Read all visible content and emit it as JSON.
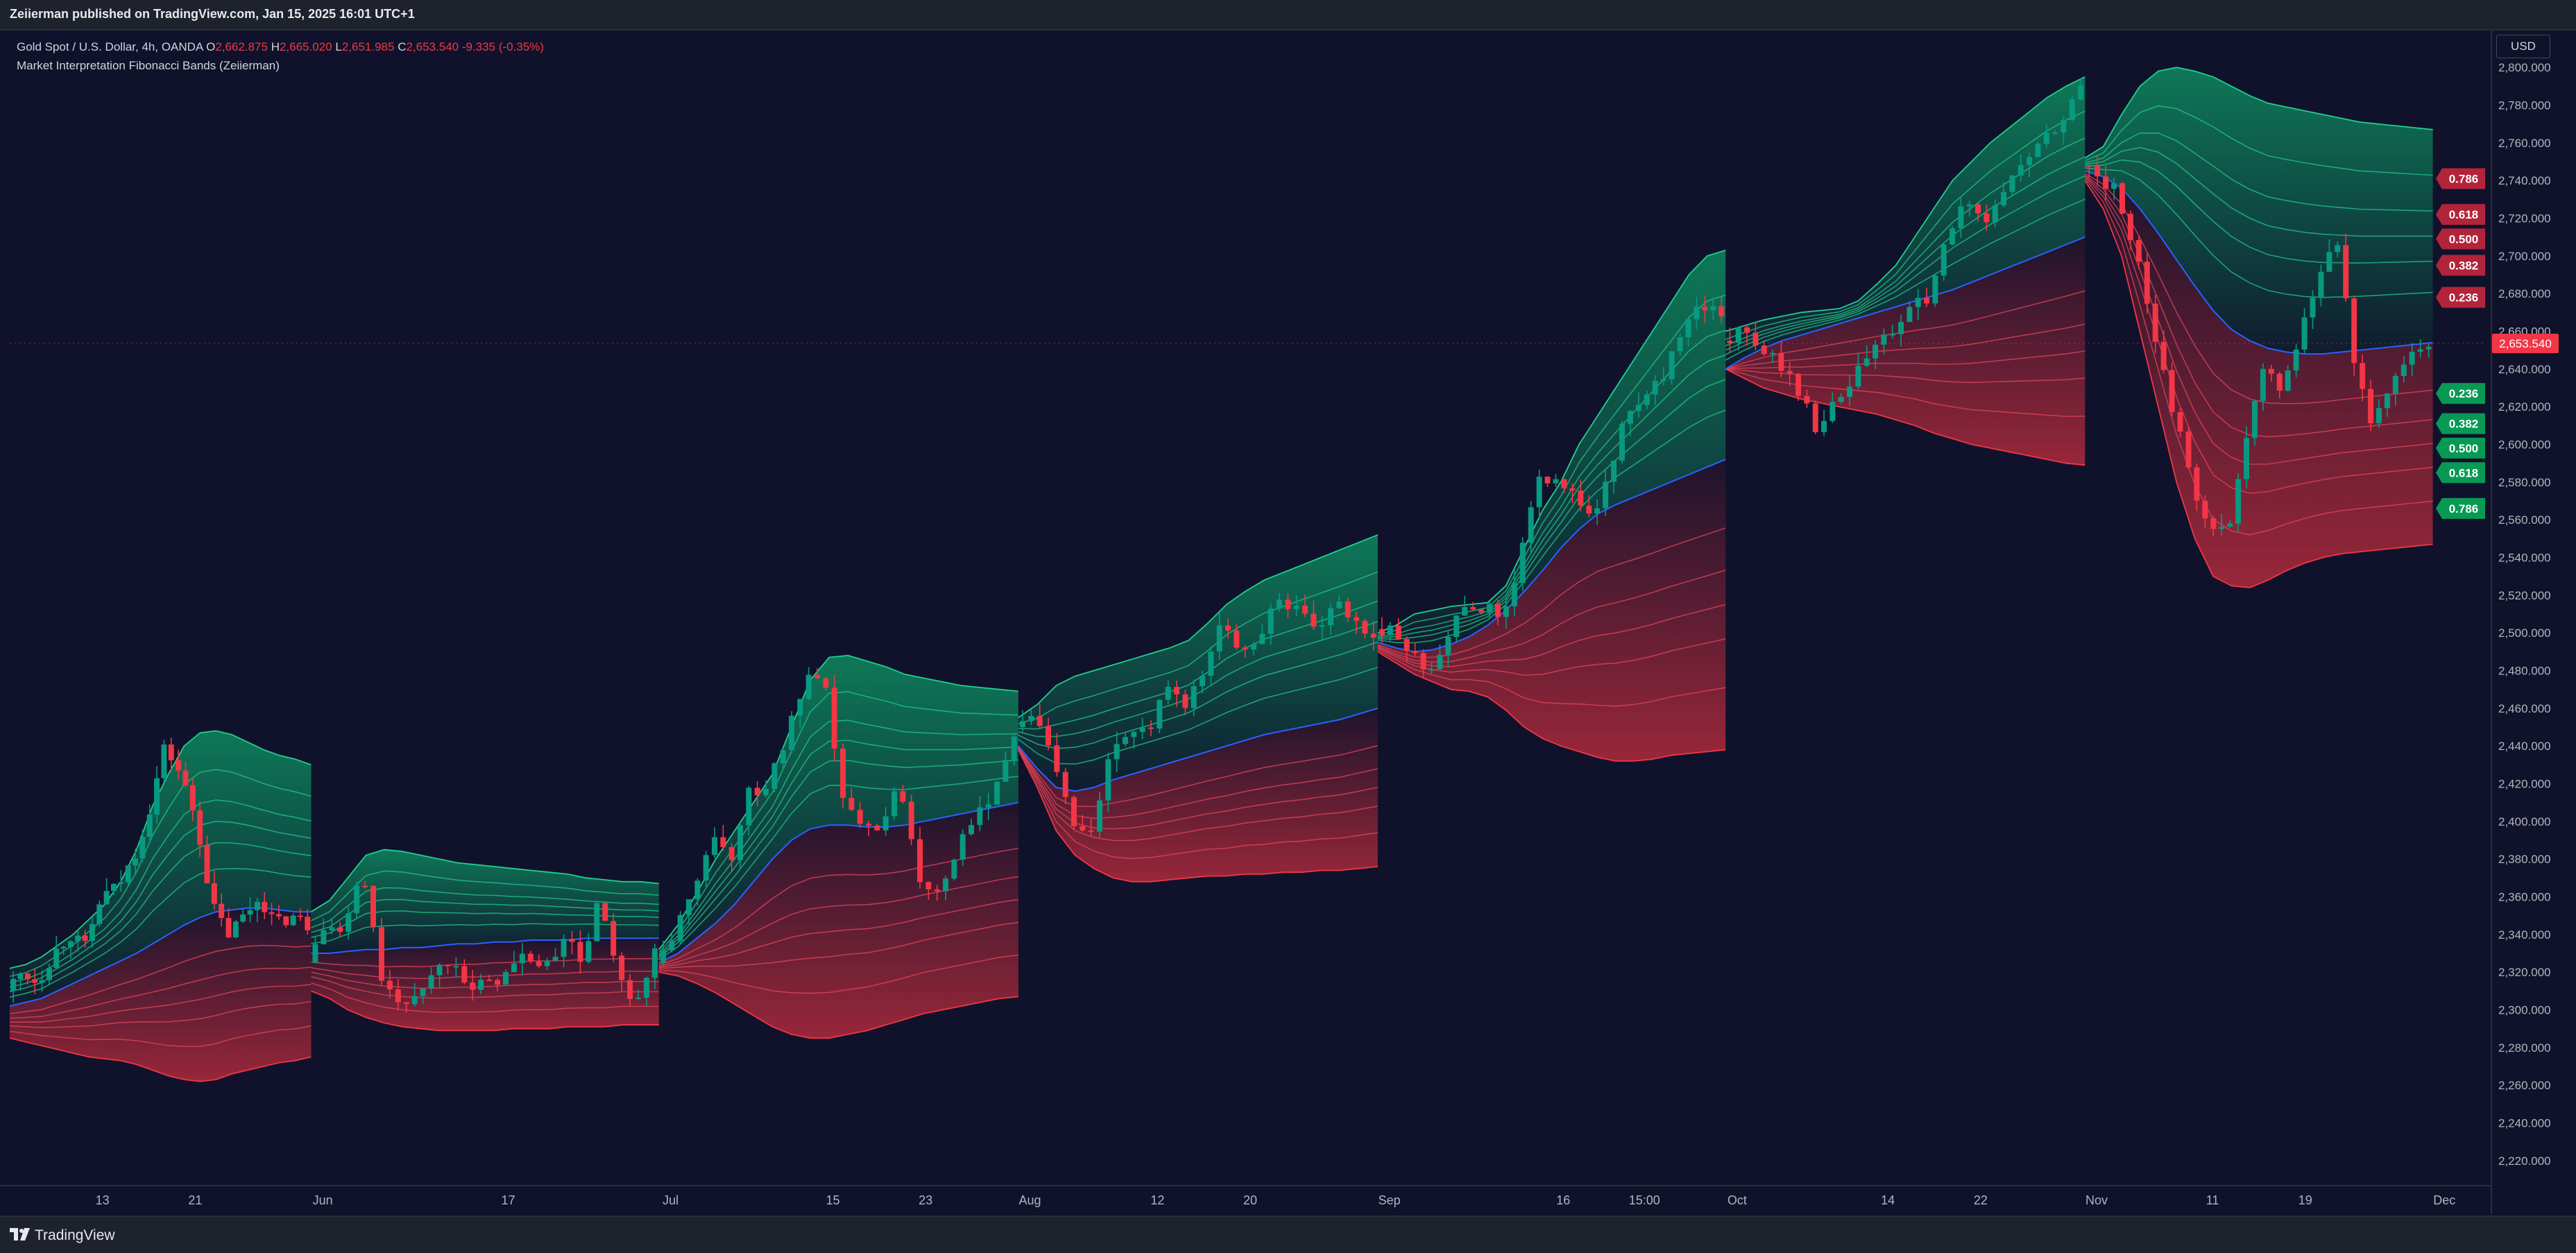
{
  "header": {
    "published": "Zeiierman published on TradingView.com, Jan 15, 2025 16:01 UTC+1"
  },
  "legend": {
    "symbol": "Gold Spot / U.S. Dollar, 4h, OANDA",
    "open_label": "O",
    "open": "2,662.875",
    "high_label": "H",
    "high": "2,665.020",
    "low_label": "L",
    "low": "2,651.985",
    "close_label": "C",
    "close": "2,653.540",
    "change": "-9.335 (-0.35%)",
    "indicator": "Market Interpretation Fibonacci Bands (Zeiierman)"
  },
  "currency": "USD",
  "footer": {
    "brand": "TradingView"
  },
  "colors": {
    "bull": "#089981",
    "bear": "#f23645",
    "midline": "#2962ff",
    "bull_fill": "#0d8a5f",
    "bear_fill": "#b12a3c",
    "background": "#10122b"
  },
  "chart_data": {
    "type": "line",
    "title": "",
    "xlabel": "",
    "ylabel": "",
    "ylim": [
      2210,
      2810
    ],
    "y_ticks": [
      "2,220.000",
      "2,240.000",
      "2,260.000",
      "2,280.000",
      "2,300.000",
      "2,320.000",
      "2,340.000",
      "2,360.000",
      "2,380.000",
      "2,400.000",
      "2,420.000",
      "2,440.000",
      "2,460.000",
      "2,480.000",
      "2,500.000",
      "2,520.000",
      "2,540.000",
      "2,560.000",
      "2,580.000",
      "2,600.000",
      "2,620.000",
      "2,640.000",
      "2,660.000",
      "2,680.000",
      "2,700.000",
      "2,720.000",
      "2,740.000",
      "2,760.000",
      "2,780.000",
      "2,800.000"
    ],
    "y_tick_values": [
      2220,
      2240,
      2260,
      2280,
      2300,
      2320,
      2340,
      2360,
      2380,
      2400,
      2420,
      2440,
      2460,
      2480,
      2500,
      2520,
      2540,
      2560,
      2580,
      2600,
      2620,
      2640,
      2660,
      2680,
      2700,
      2720,
      2740,
      2760,
      2780,
      2800
    ],
    "x_ticks": [
      {
        "label": "13",
        "x": "2024-05-13"
      },
      {
        "label": "21",
        "x": "2024-05-21"
      },
      {
        "label": "Jun",
        "x": "2024-06-01"
      },
      {
        "label": "17",
        "x": "2024-06-17"
      },
      {
        "label": "Jul",
        "x": "2024-07-01"
      },
      {
        "label": "15",
        "x": "2024-07-15"
      },
      {
        "label": "23",
        "x": "2024-07-23"
      },
      {
        "label": "Aug",
        "x": "2024-08-01"
      },
      {
        "label": "12",
        "x": "2024-08-12"
      },
      {
        "label": "20",
        "x": "2024-08-20"
      },
      {
        "label": "Sep",
        "x": "2024-09-01"
      },
      {
        "label": "16",
        "x": "2024-09-16"
      },
      {
        "label": "15:00",
        "x": "2024-09-23"
      },
      {
        "label": "Oct",
        "x": "2024-10-01"
      },
      {
        "label": "14",
        "x": "2024-10-14"
      },
      {
        "label": "22",
        "x": "2024-10-22"
      },
      {
        "label": "Nov",
        "x": "2024-11-01"
      },
      {
        "label": "11",
        "x": "2024-11-11"
      },
      {
        "label": "19",
        "x": "2024-11-19"
      },
      {
        "label": "Dec",
        "x": "2024-12-01"
      }
    ],
    "x_range": [
      "2024-05-05",
      "2024-12-02"
    ],
    "band_ratios": [
      0.236,
      0.382,
      0.5,
      0.618,
      0.786
    ],
    "segments": [
      {
        "start": "2024-05-05",
        "end": "2024-05-31",
        "mid": [
          2302,
          2304,
          2306,
          2310,
          2314,
          2318,
          2322,
          2326,
          2330,
          2335,
          2340,
          2345,
          2349,
          2352,
          2353,
          2354,
          2354,
          2353,
          2352,
          2352
        ],
        "upper": [
          2322,
          2324,
          2328,
          2334,
          2340,
          2348,
          2356,
          2368,
          2385,
          2408,
          2425,
          2440,
          2447,
          2448,
          2446,
          2442,
          2438,
          2435,
          2433,
          2430
        ],
        "lower": [
          2285,
          2283,
          2281,
          2279,
          2277,
          2275,
          2274,
          2273,
          2271,
          2268,
          2265,
          2263,
          2262,
          2263,
          2266,
          2268,
          2270,
          2272,
          2273,
          2275
        ],
        "price": [
          2310,
          2320,
          2315,
          2330,
          2340,
          2333,
          2360,
          2365,
          2380,
          2405,
          2440,
          2425,
          2400,
          2355,
          2340,
          2350,
          2360,
          2345,
          2350,
          2345
        ]
      },
      {
        "start": "2024-05-31",
        "end": "2024-06-30",
        "mid": [
          2330,
          2330,
          2331,
          2332,
          2332,
          2333,
          2333,
          2334,
          2335,
          2335,
          2336,
          2336,
          2337,
          2337,
          2337,
          2338,
          2338,
          2338,
          2338,
          2338
        ],
        "upper": [
          2352,
          2358,
          2370,
          2382,
          2385,
          2384,
          2382,
          2380,
          2378,
          2377,
          2376,
          2375,
          2374,
          2373,
          2372,
          2370,
          2369,
          2368,
          2368,
          2367
        ],
        "lower": [
          2310,
          2306,
          2300,
          2296,
          2293,
          2291,
          2290,
          2289,
          2289,
          2289,
          2289,
          2290,
          2290,
          2290,
          2291,
          2291,
          2291,
          2292,
          2292,
          2292
        ],
        "price": [
          2325,
          2345,
          2340,
          2375,
          2320,
          2300,
          2310,
          2320,
          2330,
          2310,
          2315,
          2320,
          2330,
          2320,
          2340,
          2325,
          2360,
          2315,
          2300,
          2330
        ]
      },
      {
        "start": "2024-06-30",
        "end": "2024-07-31",
        "mid": [
          2325,
          2330,
          2338,
          2346,
          2356,
          2368,
          2380,
          2390,
          2396,
          2398,
          2398,
          2397,
          2397,
          2398,
          2400,
          2402,
          2404,
          2406,
          2408,
          2410
        ],
        "upper": [
          2332,
          2345,
          2362,
          2380,
          2395,
          2410,
          2425,
          2450,
          2475,
          2487,
          2488,
          2485,
          2482,
          2478,
          2476,
          2474,
          2472,
          2471,
          2470,
          2469
        ],
        "lower": [
          2320,
          2318,
          2314,
          2309,
          2303,
          2297,
          2291,
          2287,
          2285,
          2285,
          2287,
          2289,
          2292,
          2295,
          2298,
          2300,
          2302,
          2304,
          2306,
          2307
        ],
        "price": [
          2325,
          2340,
          2360,
          2395,
          2380,
          2415,
          2420,
          2445,
          2475,
          2470,
          2410,
          2395,
          2400,
          2420,
          2370,
          2365,
          2385,
          2400,
          2420,
          2445
        ]
      },
      {
        "start": "2024-07-31",
        "end": "2024-08-31",
        "mid": [
          2440,
          2428,
          2418,
          2416,
          2418,
          2422,
          2425,
          2428,
          2431,
          2434,
          2437,
          2440,
          2443,
          2446,
          2448,
          2450,
          2452,
          2454,
          2457,
          2460
        ],
        "upper": [
          2455,
          2462,
          2472,
          2477,
          2480,
          2483,
          2486,
          2489,
          2492,
          2496,
          2505,
          2515,
          2522,
          2528,
          2532,
          2536,
          2540,
          2544,
          2548,
          2552
        ],
        "lower": [
          2438,
          2418,
          2395,
          2382,
          2375,
          2370,
          2368,
          2368,
          2369,
          2370,
          2371,
          2371,
          2372,
          2372,
          2373,
          2373,
          2374,
          2374,
          2375,
          2376
        ],
        "price": [
          2450,
          2460,
          2440,
          2400,
          2395,
          2430,
          2450,
          2445,
          2470,
          2460,
          2480,
          2505,
          2490,
          2500,
          2520,
          2510,
          2500,
          2515,
          2505,
          2500
        ]
      },
      {
        "start": "2024-08-31",
        "end": "2024-09-30",
        "mid": [
          2495,
          2492,
          2490,
          2491,
          2494,
          2498,
          2504,
          2512,
          2522,
          2533,
          2545,
          2555,
          2563,
          2568,
          2572,
          2576,
          2580,
          2584,
          2588,
          2592
        ],
        "upper": [
          2500,
          2504,
          2510,
          2512,
          2514,
          2515,
          2516,
          2525,
          2545,
          2565,
          2580,
          2600,
          2615,
          2630,
          2645,
          2660,
          2675,
          2690,
          2700,
          2703
        ],
        "lower": [
          2490,
          2484,
          2478,
          2474,
          2470,
          2469,
          2466,
          2459,
          2450,
          2444,
          2440,
          2437,
          2434,
          2432,
          2432,
          2433,
          2435,
          2436,
          2437,
          2438
        ],
        "price": [
          2502,
          2500,
          2490,
          2480,
          2500,
          2510,
          2515,
          2505,
          2540,
          2580,
          2585,
          2570,
          2560,
          2590,
          2620,
          2625,
          2640,
          2660,
          2675,
          2665
        ]
      },
      {
        "start": "2024-09-30",
        "end": "2024-10-31",
        "mid": [
          2640,
          2646,
          2651,
          2655,
          2658,
          2661,
          2664,
          2667,
          2670,
          2673,
          2676,
          2679,
          2682,
          2686,
          2690,
          2694,
          2698,
          2702,
          2706,
          2710
        ],
        "upper": [
          2660,
          2663,
          2666,
          2668,
          2670,
          2671,
          2672,
          2676,
          2685,
          2695,
          2710,
          2725,
          2740,
          2750,
          2760,
          2768,
          2776,
          2784,
          2790,
          2795
        ],
        "lower": [
          2640,
          2635,
          2630,
          2627,
          2624,
          2622,
          2620,
          2618,
          2616,
          2613,
          2610,
          2606,
          2603,
          2600,
          2598,
          2596,
          2594,
          2592,
          2590,
          2589
        ],
        "price": [
          2655,
          2660,
          2650,
          2645,
          2630,
          2610,
          2620,
          2635,
          2650,
          2660,
          2670,
          2680,
          2710,
          2730,
          2720,
          2735,
          2750,
          2760,
          2770,
          2790
        ]
      },
      {
        "start": "2024-10-31",
        "end": "2024-11-30",
        "mid": [
          2745,
          2742,
          2736,
          2725,
          2712,
          2698,
          2684,
          2671,
          2661,
          2655,
          2651,
          2649,
          2648,
          2648,
          2649,
          2650,
          2651,
          2652,
          2653,
          2654
        ],
        "upper": [
          2752,
          2758,
          2775,
          2790,
          2798,
          2800,
          2798,
          2795,
          2790,
          2785,
          2781,
          2779,
          2777,
          2775,
          2773,
          2771,
          2770,
          2769,
          2768,
          2767
        ],
        "lower": [
          2740,
          2725,
          2700,
          2660,
          2620,
          2580,
          2550,
          2530,
          2525,
          2524,
          2528,
          2533,
          2537,
          2540,
          2542,
          2543,
          2544,
          2545,
          2546,
          2547
        ],
        "price": [
          2748,
          2740,
          2735,
          2700,
          2660,
          2620,
          2580,
          2560,
          2550,
          2600,
          2640,
          2630,
          2660,
          2690,
          2710,
          2640,
          2610,
          2630,
          2645,
          2654
        ]
      }
    ],
    "last_price": 2653.54,
    "last_price_label": "2,653.540",
    "band_labels_resistance": [
      {
        "label": "0.786",
        "value": 2741
      },
      {
        "label": "0.618",
        "value": 2722
      },
      {
        "label": "0.500",
        "value": 2709
      },
      {
        "label": "0.382",
        "value": 2695
      },
      {
        "label": "0.236",
        "value": 2678
      }
    ],
    "band_labels_support": [
      {
        "label": "0.236",
        "value": 2627
      },
      {
        "label": "0.382",
        "value": 2611
      },
      {
        "label": "0.500",
        "value": 2598
      },
      {
        "label": "0.618",
        "value": 2585
      },
      {
        "label": "0.786",
        "value": 2566
      }
    ]
  }
}
